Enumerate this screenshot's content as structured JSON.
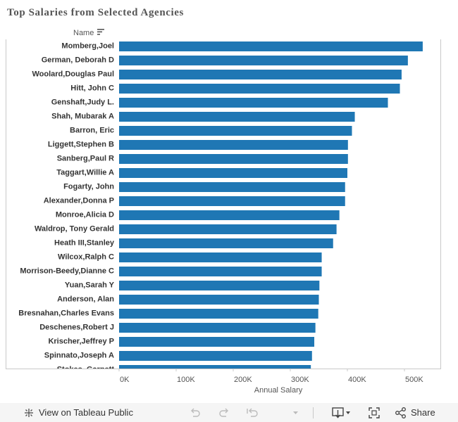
{
  "title": "Top Salaries from Selected Agencies",
  "column_header": "Name",
  "chart_data": {
    "type": "bar",
    "orientation": "horizontal",
    "title": "Top Salaries from Selected Agencies",
    "xlabel": "Annual Salary",
    "ylabel": "Name",
    "xlim": [
      0,
      550000
    ],
    "xticks": [
      0,
      100000,
      200000,
      300000,
      400000,
      500000
    ],
    "xtick_labels": [
      "0K",
      "100K",
      "200K",
      "300K",
      "400K",
      "500K"
    ],
    "bar_color": "#1f77b4",
    "grid": false,
    "categories": [
      "Momberg,Joel",
      "German, Deborah D",
      "Woolard,Douglas Paul",
      "Hitt, John C",
      "Genshaft,Judy L.",
      "Shah, Mubarak A",
      "Barron, Eric",
      "Liggett,Stephen B",
      "Sanberg,Paul R",
      "Taggart,Willie A",
      "Fogarty, John",
      "Alexander,Donna P",
      "Monroe,Alicia D",
      "Waldrop, Tony Gerald",
      "Heath III,Stanley",
      "Wilcox,Ralph C",
      "Morrison-Beedy,Dianne C",
      "Yuan,Sarah Y",
      "Anderson, Alan",
      "Bresnahan,Charles Evans",
      "Deschenes,Robert J",
      "Krischer,Jeffrey P",
      "Spinnato,Joseph A",
      "Stokes, Garnett"
    ],
    "values": [
      532000,
      506000,
      495000,
      492000,
      471000,
      413000,
      408000,
      401000,
      401000,
      400000,
      396000,
      396000,
      386000,
      381000,
      375000,
      355000,
      355000,
      351000,
      350000,
      349000,
      344000,
      342000,
      338000,
      336000
    ]
  },
  "toolbar": {
    "view_label": "View on Tableau Public",
    "share_label": "Share"
  },
  "icons": {
    "sort": "sort-descending-icon",
    "tableau": "tableau-logo-icon",
    "undo": "undo-icon",
    "redo": "redo-icon",
    "revert": "revert-icon",
    "download": "download-icon",
    "fullscreen": "fullscreen-icon",
    "share": "share-icon"
  }
}
